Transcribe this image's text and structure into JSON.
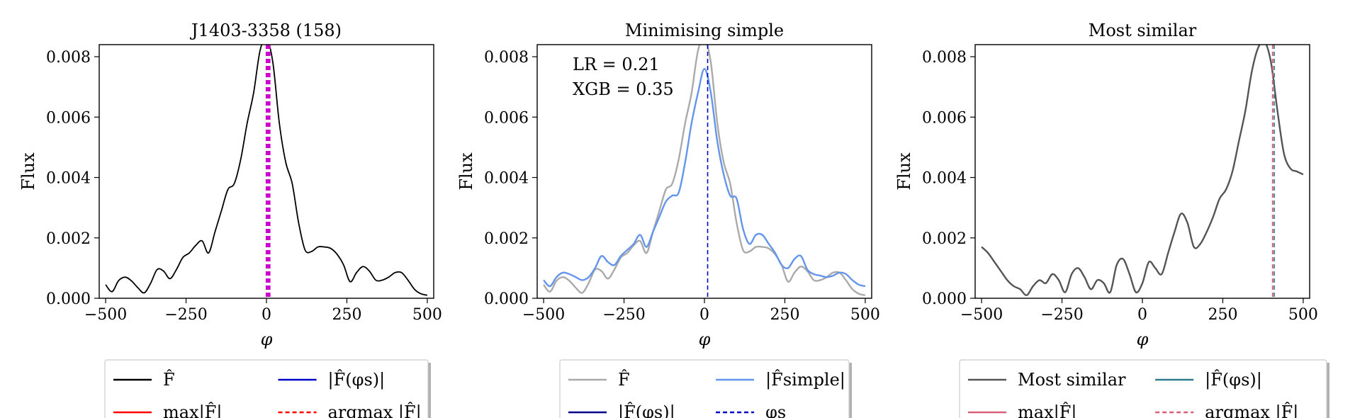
{
  "chart_data": [
    {
      "type": "line",
      "title": "J1403-3358 (158)",
      "xlabel": "φ",
      "ylabel": "Flux",
      "xlim": [
        -520,
        520
      ],
      "ylim": [
        0,
        0.0084
      ],
      "xticks": [
        -500,
        -250,
        0,
        250,
        500
      ],
      "xtick_labels": [
        "−500",
        "−250",
        "0",
        "250",
        "500"
      ],
      "yticks": [
        0,
        0.002,
        0.004,
        0.006,
        0.008
      ],
      "ytick_labels": [
        "0.000",
        "0.002",
        "0.004",
        "0.006",
        "0.008"
      ],
      "grid": false,
      "legend_position": "bottom",
      "series": [
        {
          "name": "F̂",
          "color": "#000000",
          "style": "solid",
          "x": [
            -500,
            -480,
            -460,
            -440,
            -420,
            -400,
            -380,
            -360,
            -340,
            -320,
            -300,
            -280,
            -260,
            -240,
            -220,
            -200,
            -180,
            -160,
            -140,
            -120,
            -100,
            -80,
            -60,
            -40,
            -20,
            0,
            20,
            40,
            60,
            80,
            100,
            120,
            140,
            160,
            180,
            200,
            220,
            240,
            260,
            280,
            300,
            320,
            340,
            360,
            380,
            400,
            420,
            440,
            460,
            480,
            500
          ],
          "y": [
            0.00045,
            0.00022,
            0.00058,
            0.0007,
            0.00058,
            0.00035,
            0.00018,
            0.0005,
            0.00095,
            0.0009,
            0.00065,
            0.00095,
            0.00135,
            0.0015,
            0.00175,
            0.0019,
            0.0015,
            0.0022,
            0.0029,
            0.0036,
            0.0038,
            0.0046,
            0.0058,
            0.0068,
            0.0082,
            0.0086,
            0.0078,
            0.0058,
            0.0045,
            0.0038,
            0.0025,
            0.0016,
            0.00155,
            0.0017,
            0.0017,
            0.00165,
            0.00145,
            0.0011,
            0.00055,
            0.00085,
            0.00105,
            0.0009,
            0.0006,
            0.0006,
            0.0007,
            0.00085,
            0.00085,
            0.0006,
            0.0003,
            0.00015,
            0.0001
          ]
        },
        {
          "name": "|F̂(φs)|",
          "color": "#0000cc",
          "style": "solid",
          "x": [
            8
          ],
          "y": [
            0.0086
          ]
        },
        {
          "name": "max|F̂|",
          "color": "#ff0000",
          "style": "solid",
          "x": [
            2
          ],
          "y": [
            0.0086
          ]
        },
        {
          "name": "argmax |F̂|",
          "color": "#ff0000",
          "style": "dashed",
          "x": [
            2
          ],
          "y": [
            0.0086
          ]
        }
      ],
      "vertical_lines": [
        {
          "x": 2,
          "color": "#cc00cc",
          "style": "dashed",
          "width": 4
        },
        {
          "x": 8,
          "color": "#cc00cc",
          "style": "dashed",
          "width": 4
        }
      ],
      "annotations": []
    },
    {
      "type": "line",
      "title": "Minimising simple",
      "xlabel": "φ",
      "ylabel": "Flux",
      "xlim": [
        -520,
        520
      ],
      "ylim": [
        0,
        0.0084
      ],
      "xticks": [
        -500,
        -250,
        0,
        250,
        500
      ],
      "xtick_labels": [
        "−500",
        "−250",
        "0",
        "250",
        "500"
      ],
      "yticks": [
        0,
        0.002,
        0.004,
        0.006,
        0.008
      ],
      "ytick_labels": [
        "0.000",
        "0.002",
        "0.004",
        "0.006",
        "0.008"
      ],
      "grid": false,
      "legend_position": "bottom",
      "series": [
        {
          "name": "F̂",
          "color": "#aaaaaa",
          "style": "solid",
          "x": [
            -500,
            -480,
            -460,
            -440,
            -420,
            -400,
            -380,
            -360,
            -340,
            -320,
            -300,
            -280,
            -260,
            -240,
            -220,
            -200,
            -180,
            -160,
            -140,
            -120,
            -100,
            -80,
            -60,
            -40,
            -20,
            0,
            20,
            40,
            60,
            80,
            100,
            120,
            140,
            160,
            180,
            200,
            220,
            240,
            260,
            280,
            300,
            320,
            340,
            360,
            380,
            400,
            420,
            440,
            460,
            480,
            500
          ],
          "y": [
            0.00045,
            0.00022,
            0.00058,
            0.0007,
            0.00058,
            0.00035,
            0.00018,
            0.0005,
            0.00095,
            0.0009,
            0.00065,
            0.00095,
            0.00135,
            0.0015,
            0.00175,
            0.0019,
            0.0015,
            0.0022,
            0.0029,
            0.0036,
            0.0038,
            0.0046,
            0.0058,
            0.0068,
            0.0082,
            0.0086,
            0.0078,
            0.0058,
            0.0045,
            0.0038,
            0.0025,
            0.0016,
            0.00155,
            0.0017,
            0.0017,
            0.00165,
            0.00145,
            0.0011,
            0.00055,
            0.00085,
            0.00105,
            0.0009,
            0.0006,
            0.0006,
            0.0007,
            0.00085,
            0.00085,
            0.0006,
            0.0003,
            0.00015,
            0.0001
          ]
        },
        {
          "name": "|F̂simple|",
          "color": "#6495ed",
          "style": "solid",
          "x": [
            -500,
            -480,
            -460,
            -440,
            -420,
            -400,
            -380,
            -360,
            -340,
            -320,
            -300,
            -280,
            -260,
            -240,
            -220,
            -200,
            -180,
            -160,
            -140,
            -120,
            -100,
            -80,
            -60,
            -40,
            -20,
            0,
            20,
            40,
            60,
            80,
            100,
            120,
            140,
            160,
            180,
            200,
            220,
            240,
            260,
            280,
            300,
            320,
            340,
            360,
            380,
            400,
            420,
            440,
            460,
            480,
            500
          ],
          "y": [
            0.0006,
            0.0004,
            0.0007,
            0.00085,
            0.0008,
            0.0007,
            0.0006,
            0.0007,
            0.001,
            0.0014,
            0.0012,
            0.0011,
            0.0014,
            0.0016,
            0.0018,
            0.0021,
            0.0017,
            0.0022,
            0.0027,
            0.0032,
            0.0034,
            0.0035,
            0.0045,
            0.0058,
            0.0068,
            0.0076,
            0.0068,
            0.0052,
            0.0041,
            0.0034,
            0.0033,
            0.0023,
            0.0018,
            0.0021,
            0.0021,
            0.0018,
            0.0015,
            0.0011,
            0.001,
            0.0013,
            0.0014,
            0.00095,
            0.0008,
            0.00075,
            0.0007,
            0.00075,
            0.00085,
            0.0008,
            0.0006,
            0.00045,
            0.0004
          ]
        },
        {
          "name": "|F̂(φs)|",
          "color": "#00008b",
          "style": "solid",
          "x": [
            10
          ],
          "y": [
            0.0076
          ]
        },
        {
          "name": "φs",
          "color": "#0000cc",
          "style": "dashed",
          "x": [
            10
          ],
          "y": [
            0.0076
          ]
        }
      ],
      "vertical_lines": [
        {
          "x": 10,
          "color": "#0000cc",
          "style": "dashed",
          "width": 1.6
        }
      ],
      "annotations": [
        "LR = 0.21",
        "XGB = 0.35"
      ]
    },
    {
      "type": "line",
      "title": "Most similar",
      "xlabel": "φ",
      "ylabel": "Flux",
      "xlim": [
        -520,
        520
      ],
      "ylim": [
        0,
        0.0084
      ],
      "xticks": [
        -500,
        -250,
        0,
        250,
        500
      ],
      "xtick_labels": [
        "−500",
        "−250",
        "0",
        "250",
        "500"
      ],
      "yticks": [
        0,
        0.002,
        0.004,
        0.006,
        0.008
      ],
      "ytick_labels": [
        "0.000",
        "0.002",
        "0.004",
        "0.006",
        "0.008"
      ],
      "grid": false,
      "legend_position": "bottom",
      "series": [
        {
          "name": "Most similar",
          "color": "#555555",
          "style": "solid",
          "x": [
            -500,
            -480,
            -460,
            -440,
            -420,
            -400,
            -380,
            -360,
            -340,
            -320,
            -300,
            -280,
            -260,
            -240,
            -220,
            -200,
            -180,
            -160,
            -140,
            -120,
            -100,
            -80,
            -60,
            -40,
            -20,
            0,
            20,
            40,
            60,
            80,
            100,
            120,
            140,
            160,
            180,
            200,
            220,
            240,
            260,
            280,
            300,
            320,
            340,
            360,
            380,
            400,
            420,
            440,
            460,
            480,
            500
          ],
          "y": [
            0.0017,
            0.0015,
            0.0012,
            0.0009,
            0.0006,
            0.0004,
            0.0003,
            0.0001,
            0.0004,
            0.0006,
            0.0005,
            0.0008,
            0.0006,
            0.0002,
            0.0008,
            0.001,
            0.0007,
            0.0003,
            0.0006,
            0.0005,
            0.0002,
            0.0011,
            0.0013,
            0.0008,
            0.0002,
            0.0005,
            0.0012,
            0.001,
            0.0008,
            0.0015,
            0.0022,
            0.0028,
            0.0025,
            0.0017,
            0.0018,
            0.0022,
            0.0027,
            0.0033,
            0.0036,
            0.0042,
            0.0052,
            0.0062,
            0.0075,
            0.0083,
            0.0085,
            0.0078,
            0.0062,
            0.0048,
            0.0043,
            0.0042,
            0.0041
          ]
        },
        {
          "name": "|F̂(φs)|",
          "color": "#2e7d8c",
          "style": "solid",
          "x": [
            410
          ],
          "y": [
            0.0085
          ]
        },
        {
          "name": "max|F̂|",
          "color": "#d9607a",
          "style": "solid",
          "x": [
            405
          ],
          "y": [
            0.0085
          ]
        },
        {
          "name": "argmax |F̂|",
          "color": "#d9607a",
          "style": "dashed",
          "x": [
            405
          ],
          "y": [
            0.0085
          ]
        }
      ],
      "vertical_lines": [
        {
          "x": 405,
          "color": "#d9607a",
          "style": "dashed",
          "width": 2
        },
        {
          "x": 410,
          "color": "#2e7d8c",
          "style": "dashed",
          "width": 1.6
        }
      ],
      "annotations": []
    }
  ]
}
